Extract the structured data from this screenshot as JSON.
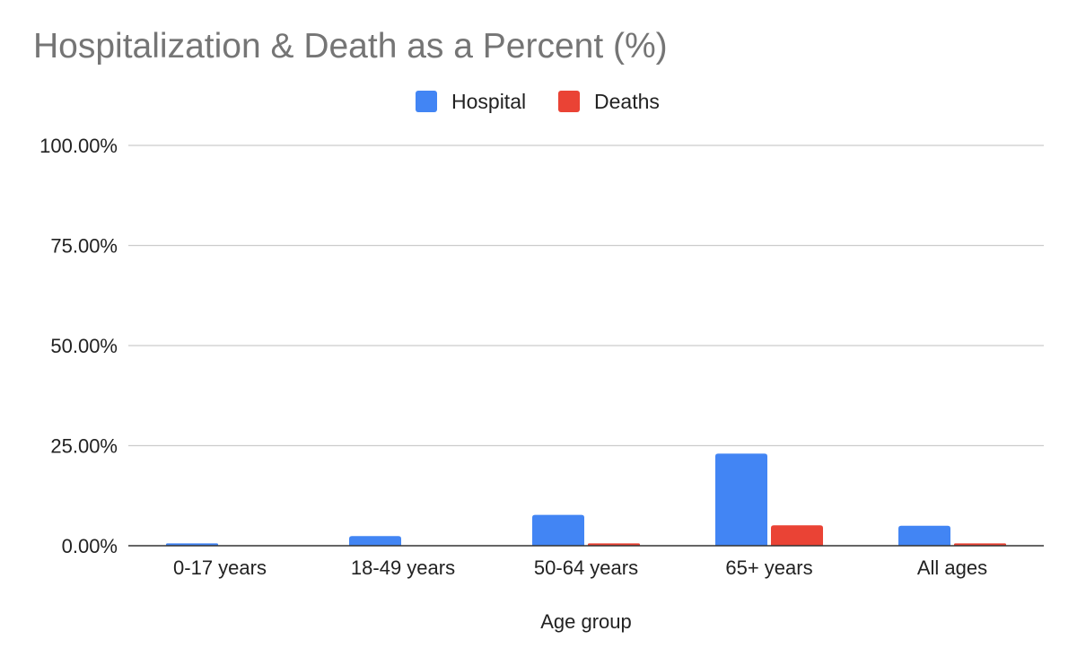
{
  "chart_data": {
    "type": "bar",
    "title": "Hospitalization & Death as a Percent (%)",
    "xlabel": "Age group",
    "ylabel": "",
    "categories": [
      "0-17 years",
      "18-49 years",
      "50-64 years",
      "65+ years",
      "All ages"
    ],
    "series": [
      {
        "name": "Hospital",
        "color": "#4285f4",
        "values": [
          0.6,
          2.4,
          7.7,
          23.0,
          5.0
        ]
      },
      {
        "name": "Deaths",
        "color": "#ea4335",
        "values": [
          0.0,
          0.1,
          0.6,
          5.1,
          0.6
        ]
      }
    ],
    "ylim": [
      0,
      100
    ],
    "y_ticks": [
      "0.00%",
      "25.00%",
      "50.00%",
      "75.00%",
      "100.00%"
    ],
    "y_tick_values": [
      0,
      25,
      50,
      75,
      100
    ],
    "grid": true,
    "legend_position": "top-center"
  }
}
